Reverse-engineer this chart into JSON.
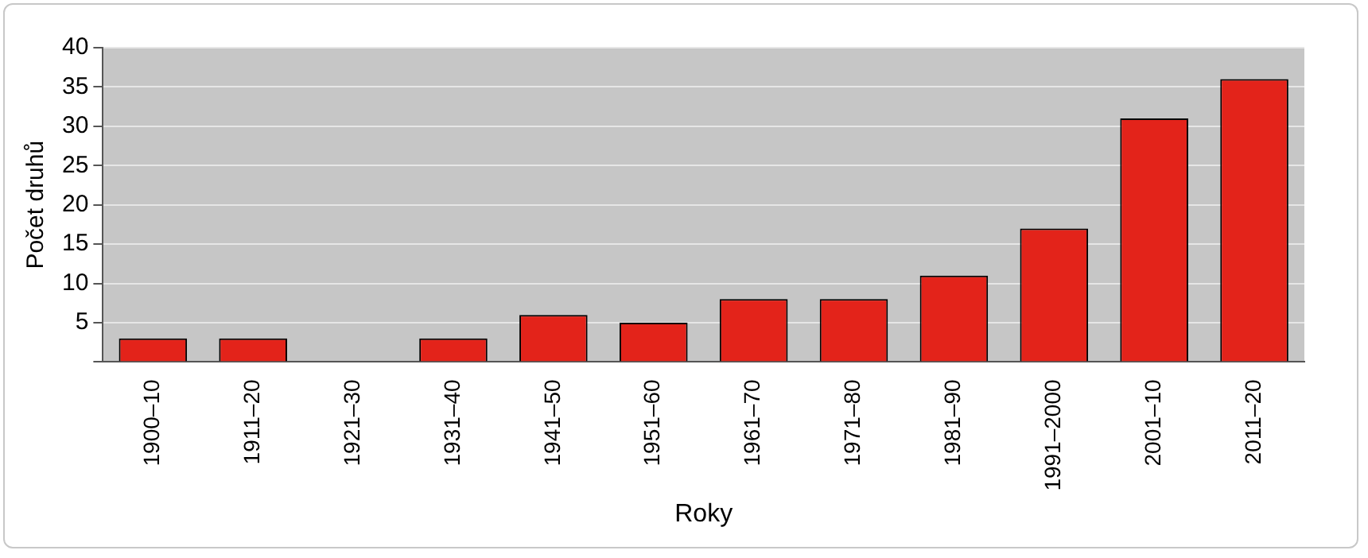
{
  "chart_data": {
    "type": "bar",
    "xlabel": "Roky",
    "ylabel": "Počet druhů",
    "categories": [
      "1900–10",
      "1911–20",
      "1921–30",
      "1931–40",
      "1941–50",
      "1951–60",
      "1961–70",
      "1971–80",
      "1981–90",
      "1991–2000",
      "2001–10",
      "2011–20"
    ],
    "values": [
      3,
      3,
      0,
      3,
      6,
      5,
      8,
      8,
      11,
      17,
      31,
      36
    ],
    "color": "#e3231a",
    "ylim": [
      0,
      40
    ],
    "yticks": [
      {
        "value": 0,
        "label": null
      },
      5,
      10,
      15,
      20,
      25,
      30,
      35,
      40
    ],
    "grid": "y"
  }
}
